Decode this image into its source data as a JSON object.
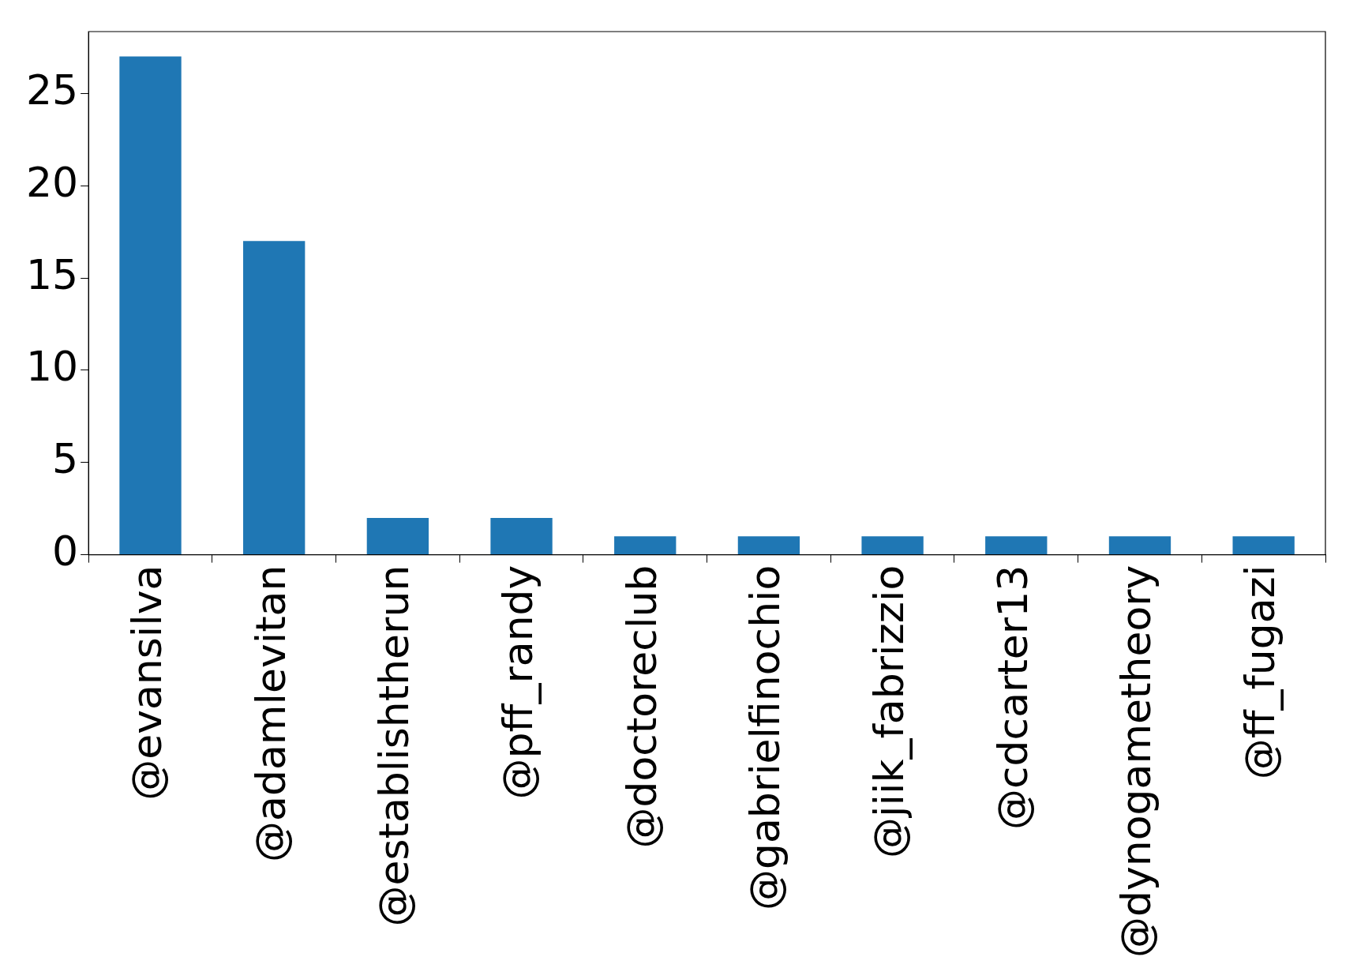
{
  "chart_data": {
    "type": "bar",
    "categories": [
      "@evansilva",
      "@adamlevitan",
      "@establishtherun",
      "@pff_randy",
      "@doctoreclub",
      "@gabrielfinochio",
      "@jiik_fabrizzio",
      "@cdcarter13",
      "@dynogametheory",
      "@ff_fugazi"
    ],
    "values": [
      27,
      17,
      2,
      2,
      1,
      1,
      1,
      1,
      1,
      1
    ],
    "color": "#1f77b4",
    "ylim": [
      0,
      28.35
    ],
    "yticks": [
      0,
      5,
      10,
      15,
      20,
      25
    ],
    "grid": false,
    "legend": false
  }
}
